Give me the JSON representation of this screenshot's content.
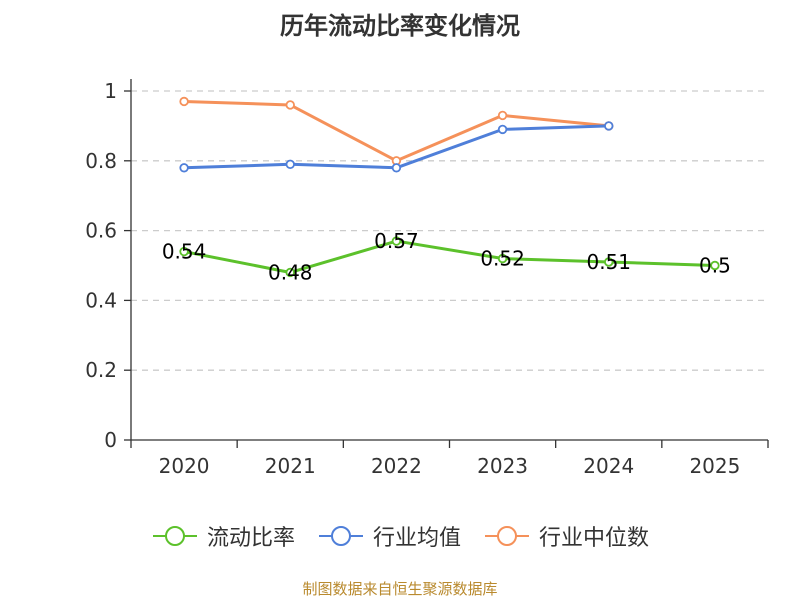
{
  "chart_data": {
    "type": "line",
    "title": "历年流动比率变化情况",
    "categories": [
      "2020",
      "2021",
      "2022",
      "2023",
      "2024",
      "2025"
    ],
    "ylim": [
      0,
      1
    ],
    "yticks": [
      0,
      0.2,
      0.4,
      0.6,
      0.8,
      1
    ],
    "ytick_labels": [
      "0",
      "0.2",
      "0.4",
      "0.6",
      "0.8",
      "1"
    ],
    "grid": true,
    "legend_position": "bottom",
    "xlabel": "",
    "ylabel": "",
    "series": [
      {
        "name": "流动比率",
        "color": "#5cc12b",
        "values": [
          0.54,
          0.48,
          0.57,
          0.52,
          0.51,
          0.5
        ],
        "labels": [
          "0.54",
          "0.48",
          "0.57",
          "0.52",
          "0.51",
          "0.5"
        ]
      },
      {
        "name": "行业均值",
        "color": "#4f7fd9",
        "values": [
          0.78,
          0.79,
          0.78,
          0.89,
          0.9,
          null
        ]
      },
      {
        "name": "行业中位数",
        "color": "#f5915a",
        "values": [
          0.97,
          0.96,
          0.8,
          0.93,
          0.9,
          null
        ]
      }
    ]
  },
  "source_note": "制图数据来自恒生聚源数据库"
}
